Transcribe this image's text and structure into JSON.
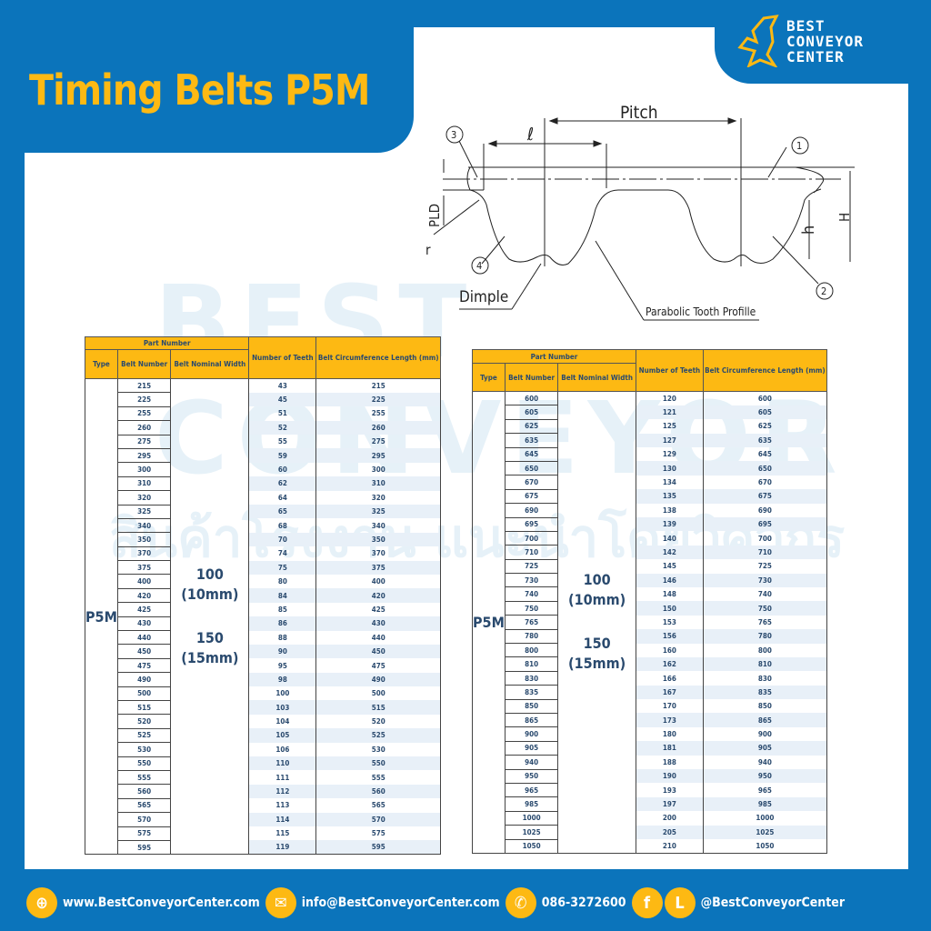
{
  "title": "Timing Belts P5M",
  "logo": {
    "lines": [
      "BEST",
      "CONVEYOR",
      "CENTER"
    ]
  },
  "watermark": {
    "brand": "BEST CONVEYOR CENTER",
    "thai": "สินค้าโรงงาน แนะนำโดยวิศวกร"
  },
  "colors": {
    "brand_blue": "#0b74bb",
    "accent_yellow": "#fdb913",
    "text_navy": "#2a4a6e"
  },
  "diagram": {
    "pitch": "Pitch",
    "l": "ℓ",
    "pld": "PLD",
    "r": "r",
    "h": "h",
    "H": "H",
    "dimple": "Dimple",
    "profile": "Parabolic Tooth Profille",
    "callouts": [
      "1",
      "2",
      "3",
      "4"
    ]
  },
  "table_headers": {
    "part_number": "Part Number",
    "type": "Type",
    "belt_number": "Belt Number",
    "width": "Belt Nominal Width",
    "teeth": "Number of Teeth",
    "length": "Belt Circumference Length (mm)"
  },
  "type": "P5M",
  "width_a": "100",
  "width_a_mm": "(10mm)",
  "width_b": "150",
  "width_b_mm": "(15mm)",
  "tables": [
    {
      "belt_numbers": [
        "215",
        "225",
        "255",
        "260",
        "275",
        "295",
        "300",
        "310",
        "320",
        "325",
        "340",
        "350",
        "370",
        "375",
        "400",
        "420",
        "425",
        "430",
        "440",
        "450",
        "475",
        "490",
        "500",
        "515",
        "520",
        "525",
        "530",
        "550",
        "555",
        "560",
        "565",
        "570",
        "575",
        "595"
      ],
      "teeth": [
        "43",
        "45",
        "51",
        "52",
        "55",
        "59",
        "60",
        "62",
        "64",
        "65",
        "68",
        "70",
        "74",
        "75",
        "80",
        "84",
        "85",
        "86",
        "88",
        "90",
        "95",
        "98",
        "100",
        "103",
        "104",
        "105",
        "106",
        "110",
        "111",
        "112",
        "113",
        "114",
        "115",
        "119"
      ],
      "lengths": [
        "215",
        "225",
        "255",
        "260",
        "275",
        "295",
        "300",
        "310",
        "320",
        "325",
        "340",
        "350",
        "370",
        "375",
        "400",
        "420",
        "425",
        "430",
        "440",
        "450",
        "475",
        "490",
        "500",
        "515",
        "520",
        "525",
        "530",
        "550",
        "555",
        "560",
        "565",
        "570",
        "575",
        "595"
      ]
    },
    {
      "belt_numbers": [
        "600",
        "605",
        "625",
        "635",
        "645",
        "650",
        "670",
        "675",
        "690",
        "695",
        "700",
        "710",
        "725",
        "730",
        "740",
        "750",
        "765",
        "780",
        "800",
        "810",
        "830",
        "835",
        "850",
        "865",
        "900",
        "905",
        "940",
        "950",
        "965",
        "985",
        "1000",
        "1025",
        "1050"
      ],
      "teeth": [
        "120",
        "121",
        "125",
        "127",
        "129",
        "130",
        "134",
        "135",
        "138",
        "139",
        "140",
        "142",
        "145",
        "146",
        "148",
        "150",
        "153",
        "156",
        "160",
        "162",
        "166",
        "167",
        "170",
        "173",
        "180",
        "181",
        "188",
        "190",
        "193",
        "197",
        "200",
        "205",
        "210"
      ],
      "lengths": [
        "600",
        "605",
        "625",
        "635",
        "645",
        "650",
        "670",
        "675",
        "690",
        "695",
        "700",
        "710",
        "725",
        "730",
        "740",
        "750",
        "765",
        "780",
        "800",
        "810",
        "830",
        "835",
        "850",
        "865",
        "900",
        "905",
        "940",
        "950",
        "965",
        "985",
        "1000",
        "1025",
        "1050"
      ]
    }
  ],
  "footer": {
    "website": "www.BestConveyorCenter.com",
    "email": "info@BestConveyorCenter.com",
    "phone": "086-3272600",
    "social": "@BestConveyorCenter",
    "icons": [
      "globe-icon",
      "mail-icon",
      "phone-icon",
      "facebook-icon",
      "line-icon"
    ]
  }
}
